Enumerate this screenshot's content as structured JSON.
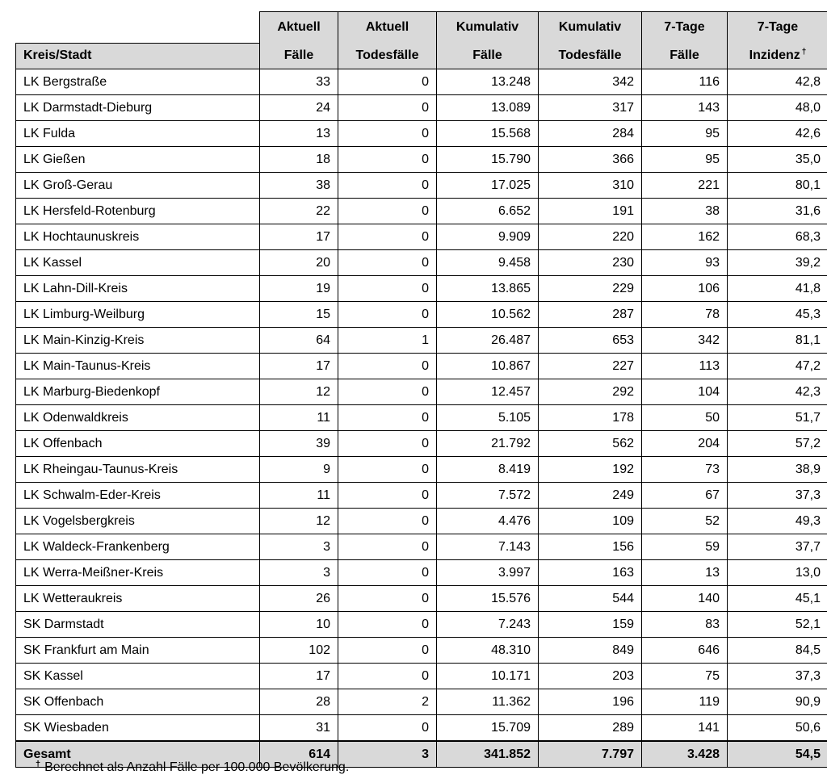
{
  "table": {
    "header_top": [
      "",
      "Aktuell",
      "Aktuell",
      "Kumulativ",
      "Kumulativ",
      "7-Tage",
      "7-Tage"
    ],
    "header_bottom": [
      "Kreis/Stadt",
      "Fälle",
      "Todesfälle",
      "Fälle",
      "Todesfälle",
      "Fälle",
      "Inzidenz"
    ],
    "incidence_marker": "†",
    "rows": [
      [
        "LK Bergstraße",
        "33",
        "0",
        "13.248",
        "342",
        "116",
        "42,8"
      ],
      [
        "LK Darmstadt-Dieburg",
        "24",
        "0",
        "13.089",
        "317",
        "143",
        "48,0"
      ],
      [
        "LK Fulda",
        "13",
        "0",
        "15.568",
        "284",
        "95",
        "42,6"
      ],
      [
        "LK Gießen",
        "18",
        "0",
        "15.790",
        "366",
        "95",
        "35,0"
      ],
      [
        "LK Groß-Gerau",
        "38",
        "0",
        "17.025",
        "310",
        "221",
        "80,1"
      ],
      [
        "LK Hersfeld-Rotenburg",
        "22",
        "0",
        "6.652",
        "191",
        "38",
        "31,6"
      ],
      [
        "LK Hochtaunuskreis",
        "17",
        "0",
        "9.909",
        "220",
        "162",
        "68,3"
      ],
      [
        "LK Kassel",
        "20",
        "0",
        "9.458",
        "230",
        "93",
        "39,2"
      ],
      [
        "LK Lahn-Dill-Kreis",
        "19",
        "0",
        "13.865",
        "229",
        "106",
        "41,8"
      ],
      [
        "LK Limburg-Weilburg",
        "15",
        "0",
        "10.562",
        "287",
        "78",
        "45,3"
      ],
      [
        "LK Main-Kinzig-Kreis",
        "64",
        "1",
        "26.487",
        "653",
        "342",
        "81,1"
      ],
      [
        "LK Main-Taunus-Kreis",
        "17",
        "0",
        "10.867",
        "227",
        "113",
        "47,2"
      ],
      [
        "LK Marburg-Biedenkopf",
        "12",
        "0",
        "12.457",
        "292",
        "104",
        "42,3"
      ],
      [
        "LK Odenwaldkreis",
        "11",
        "0",
        "5.105",
        "178",
        "50",
        "51,7"
      ],
      [
        "LK Offenbach",
        "39",
        "0",
        "21.792",
        "562",
        "204",
        "57,2"
      ],
      [
        "LK Rheingau-Taunus-Kreis",
        "9",
        "0",
        "8.419",
        "192",
        "73",
        "38,9"
      ],
      [
        "LK Schwalm-Eder-Kreis",
        "11",
        "0",
        "7.572",
        "249",
        "67",
        "37,3"
      ],
      [
        "LK Vogelsbergkreis",
        "12",
        "0",
        "4.476",
        "109",
        "52",
        "49,3"
      ],
      [
        "LK Waldeck-Frankenberg",
        "3",
        "0",
        "7.143",
        "156",
        "59",
        "37,7"
      ],
      [
        "LK Werra-Meißner-Kreis",
        "3",
        "0",
        "3.997",
        "163",
        "13",
        "13,0"
      ],
      [
        "LK Wetteraukreis",
        "26",
        "0",
        "15.576",
        "544",
        "140",
        "45,1"
      ],
      [
        "SK Darmstadt",
        "10",
        "0",
        "7.243",
        "159",
        "83",
        "52,1"
      ],
      [
        "SK Frankfurt am Main",
        "102",
        "0",
        "48.310",
        "849",
        "646",
        "84,5"
      ],
      [
        "SK Kassel",
        "17",
        "0",
        "10.171",
        "203",
        "75",
        "37,3"
      ],
      [
        "SK Offenbach",
        "28",
        "2",
        "11.362",
        "196",
        "119",
        "90,9"
      ],
      [
        "SK Wiesbaden",
        "31",
        "0",
        "15.709",
        "289",
        "141",
        "50,6"
      ]
    ],
    "total": [
      "Gesamt",
      "614",
      "3",
      "341.852",
      "7.797",
      "3.428",
      "54,5"
    ]
  },
  "footnote": {
    "marker": "†",
    "text": "Berechnet als Anzahl Fälle per 100.000 Bevölkerung."
  },
  "colors": {
    "header_background": "#d9d9d9",
    "total_background": "#d9d9d9",
    "border": "#000000"
  }
}
